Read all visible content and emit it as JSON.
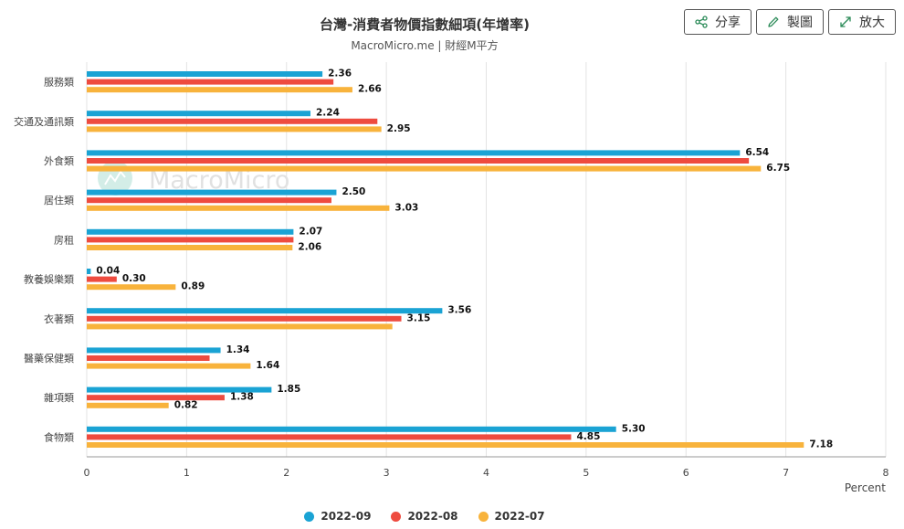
{
  "header": {
    "title": "台灣-消費者物價指數細項(年增率)",
    "subtitle": "MacroMicro.me | 財經M平方"
  },
  "toolbar": {
    "share_label": "分享",
    "draw_label": "製圖",
    "zoom_label": "放大"
  },
  "watermark": "MacroMicro",
  "colors": {
    "series_0": "#1aa3d4",
    "series_1": "#ee4b3f",
    "series_2": "#f8b33c",
    "grid": "#e3e3e3",
    "axis": "#555555"
  },
  "chart_data": {
    "type": "bar",
    "orientation": "horizontal",
    "categories": [
      "服務類",
      "交通及通訊類",
      "外食類",
      "居住類",
      "房租",
      "教養娛樂類",
      "衣著類",
      "醫藥保健類",
      "雜項類",
      "食物類"
    ],
    "series": [
      {
        "name": "2022-09",
        "values": [
          2.36,
          2.24,
          6.54,
          2.5,
          2.07,
          0.04,
          3.56,
          1.34,
          1.85,
          5.3
        ],
        "labels_shown": true
      },
      {
        "name": "2022-08",
        "values": [
          2.47,
          2.91,
          6.63,
          2.45,
          2.07,
          0.3,
          3.15,
          1.23,
          1.38,
          4.85
        ],
        "labels_shown": [
          false,
          false,
          false,
          false,
          false,
          true,
          true,
          false,
          true,
          true
        ]
      },
      {
        "name": "2022-07",
        "values": [
          2.66,
          2.95,
          6.75,
          3.03,
          2.06,
          0.89,
          3.06,
          1.64,
          0.82,
          7.18
        ],
        "labels_shown": [
          true,
          true,
          true,
          true,
          true,
          true,
          false,
          true,
          true,
          true
        ]
      }
    ],
    "xlabel": "Percent",
    "ylabel": "",
    "xlim": [
      0,
      8
    ],
    "xticks": [
      "0",
      "1",
      "2",
      "3",
      "4",
      "5",
      "6",
      "7",
      "8"
    ],
    "grid": true,
    "legend_position": "bottom"
  }
}
